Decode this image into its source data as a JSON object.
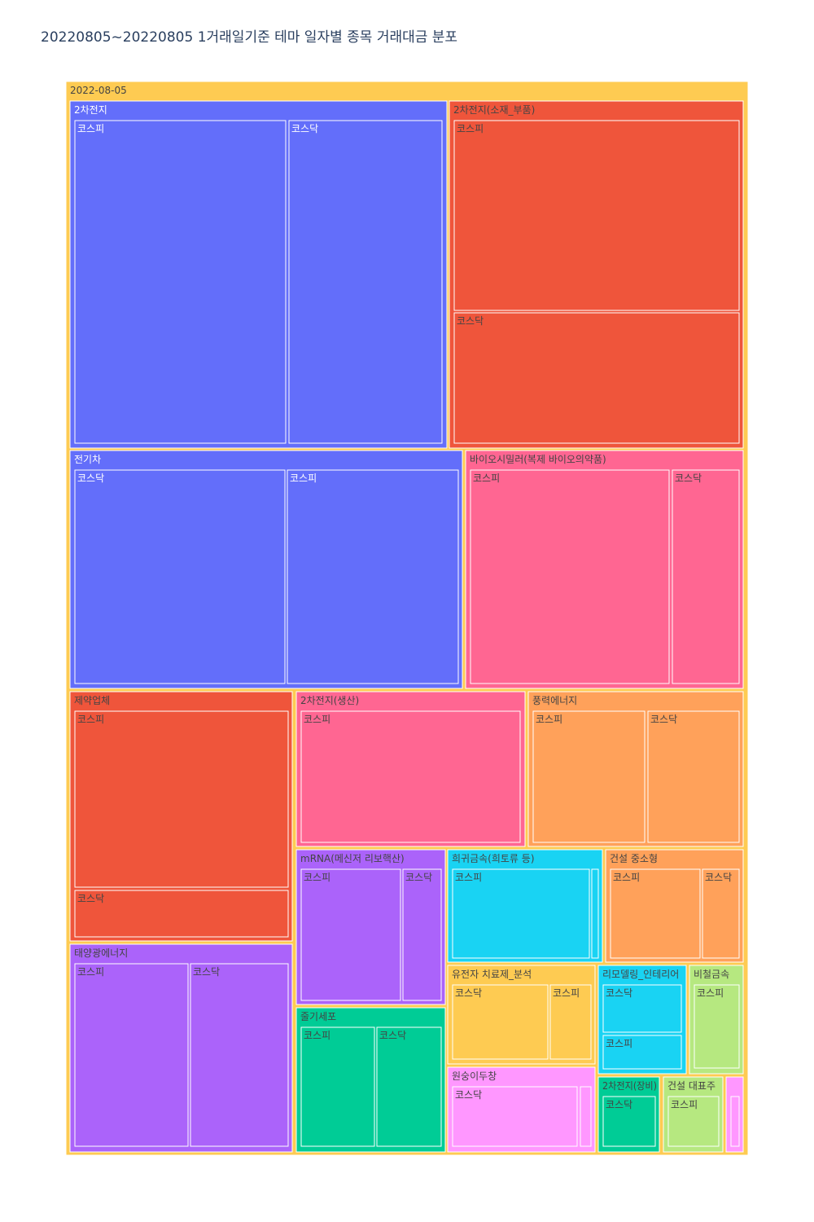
{
  "title": "20220805~20220805 1거래일기준 테마 일자별 종목 거래대금 분포",
  "chart_data": {
    "type": "treemap",
    "root": {
      "label": "2022-08-05",
      "color": "#FECB52"
    },
    "groups": [
      {
        "label": "2차전지",
        "color": "#636EFA",
        "label_color": "#ffffff",
        "children": [
          {
            "label": "코스피",
            "value": 29.1
          },
          {
            "label": "코스닥",
            "value": 21.3
          }
        ]
      },
      {
        "label": "2차전지(소재_부품)",
        "color": "#EF553B",
        "label_color": "#444444",
        "children": [
          {
            "label": "코스피",
            "value": 29.5
          },
          {
            "label": "코스닥",
            "value": 20.6
          }
        ]
      },
      {
        "label": "전기차",
        "color": "#636EFA",
        "label_color": "#ffffff",
        "children": [
          {
            "label": "코스닥",
            "value": 22.6
          },
          {
            "label": "코스피",
            "value": 18.4
          }
        ]
      },
      {
        "label": "바이오시밀러(복제 바이오의약품)",
        "color": "#FF6692",
        "label_color": "#444444",
        "children": [
          {
            "label": "코스피",
            "value": 19.6
          },
          {
            "label": "코스닥",
            "value": 6.7
          }
        ]
      },
      {
        "label": "제약업체",
        "color": "#EF553B",
        "label_color": "#444444",
        "children": [
          {
            "label": "코스피",
            "value": 14.0
          },
          {
            "label": "코스닥",
            "value": 3.6
          }
        ]
      },
      {
        "label": "2차전지(생산)",
        "color": "#FF6692",
        "label_color": "#444444",
        "children": [
          {
            "label": "코스피",
            "value": 11.2
          }
        ]
      },
      {
        "label": "풍력에너지",
        "color": "#FFA15A",
        "label_color": "#444444",
        "children": [
          {
            "label": "코스피",
            "value": 6.1
          },
          {
            "label": "코스닥",
            "value": 5.0
          }
        ]
      },
      {
        "label": "태양광에너지",
        "color": "#AB63FA",
        "label_color": "#444444",
        "children": [
          {
            "label": "코스피",
            "value": 7.2
          },
          {
            "label": "코스닥",
            "value": 6.3
          }
        ]
      },
      {
        "label": "mRNA(메신저 리보핵산)",
        "color": "#AB63FA",
        "label_color": "#444444",
        "children": [
          {
            "label": "코스피",
            "value": 5.2
          },
          {
            "label": "코스닥",
            "value": 2.0
          }
        ]
      },
      {
        "label": "희귀금속(희토류 등)",
        "color": "#19D3F3",
        "label_color": "#444444",
        "children": [
          {
            "label": "코스피",
            "value": 4.8
          },
          {
            "label": "",
            "value": 0.2
          }
        ]
      },
      {
        "label": "건설 중소형",
        "color": "#FFA15A",
        "label_color": "#444444",
        "children": [
          {
            "label": "코스피",
            "value": 3.5
          },
          {
            "label": "코스닥",
            "value": 1.4
          }
        ]
      },
      {
        "label": "줄기세포",
        "color": "#00CC96",
        "label_color": "#444444",
        "children": [
          {
            "label": "코스피",
            "value": 3.3
          },
          {
            "label": "코스닥",
            "value": 2.9
          }
        ]
      },
      {
        "label": "유전자 치료제_분석",
        "color": "#FECB52",
        "label_color": "#444444",
        "children": [
          {
            "label": "코스닥",
            "value": 2.8
          },
          {
            "label": "코스피",
            "value": 1.2
          }
        ]
      },
      {
        "label": "원숭이두창",
        "color": "#FF97FF",
        "label_color": "#444444",
        "children": [
          {
            "label": "코스닥",
            "value": 2.4
          },
          {
            "label": "",
            "value": 0.2
          }
        ]
      },
      {
        "label": "리모델링_인테리어",
        "color": "#19D3F3",
        "label_color": "#444444",
        "children": [
          {
            "label": "코스닥",
            "value": 1.9
          },
          {
            "label": "코스피",
            "value": 1.2
          }
        ]
      },
      {
        "label": "비철금속",
        "color": "#B6E880",
        "label_color": "#444444",
        "children": [
          {
            "label": "코스피",
            "value": 1.9
          }
        ]
      },
      {
        "label": "2차전지(장비)",
        "color": "#00CC96",
        "label_color": "#444444",
        "children": [
          {
            "label": "코스닥",
            "value": 1.1
          }
        ]
      },
      {
        "label": "건설 대표주",
        "color": "#B6E880",
        "label_color": "#444444",
        "children": [
          {
            "label": "코스피",
            "value": 1.1
          }
        ]
      },
      {
        "label": "",
        "color": "#FF97FF",
        "label_color": "#444444",
        "children": [
          {
            "label": "",
            "value": 0.3
          }
        ]
      }
    ]
  }
}
